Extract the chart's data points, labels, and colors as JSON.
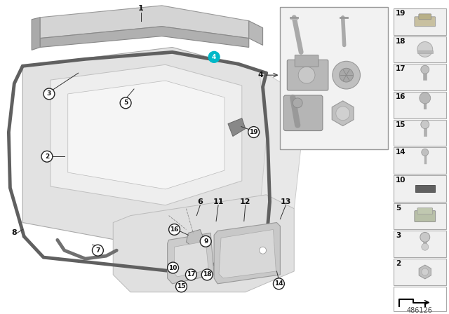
{
  "bg_color": "#ffffff",
  "bottom_text": "486126",
  "highlight_color": "#00b8c8",
  "body_light": "#e8e8e8",
  "body_mid": "#d0d0d0",
  "body_dark": "#b8b8b8",
  "spoiler_top": "#d2d2d2",
  "spoiler_side": "#b0b0b0",
  "seal_color": "#606060",
  "seal_lw": 3.5,
  "box_bg": "#f2f2f2",
  "box_border": "#aaaaaa",
  "panel_bg": "#f0f0f0",
  "label_color": "#111111",
  "circle_edge": "#222222",
  "circle_bg": "#ffffff"
}
